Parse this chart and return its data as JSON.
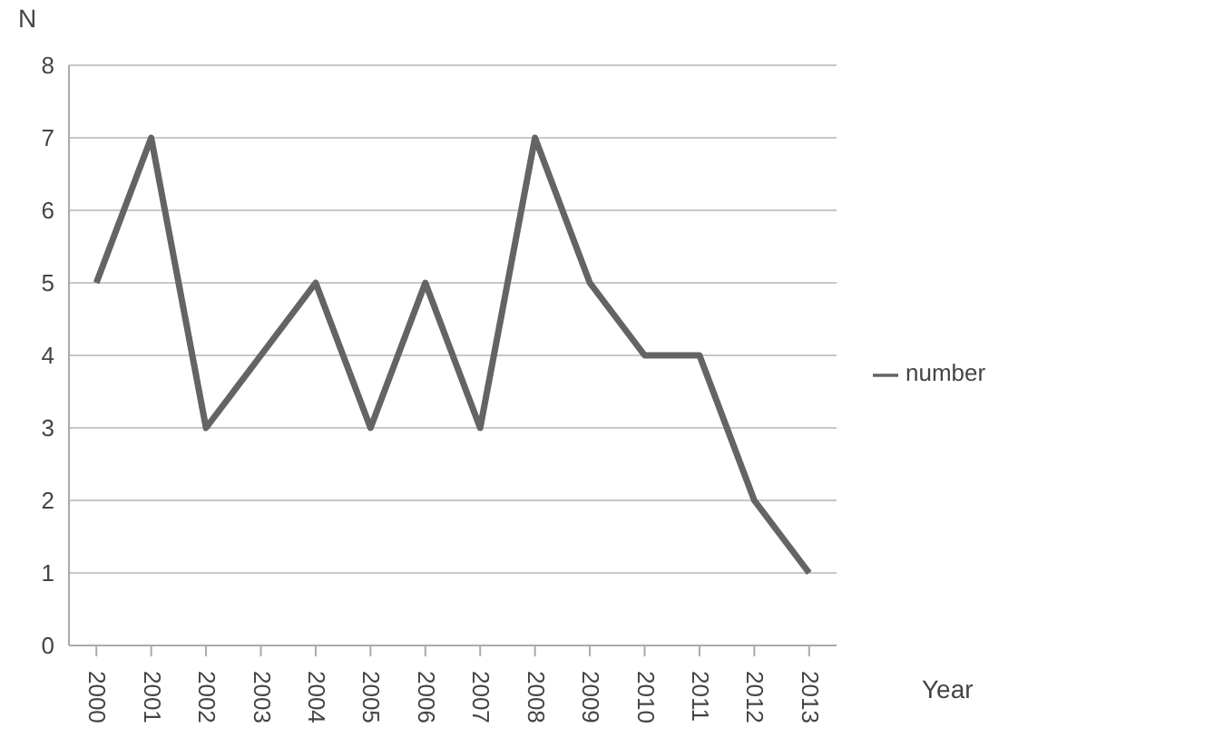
{
  "chart_data": {
    "type": "line",
    "xlabel": "Year",
    "ylabel": "N",
    "categories": [
      "2000",
      "2001",
      "2002",
      "2003",
      "2004",
      "2005",
      "2006",
      "2007",
      "2008",
      "2009",
      "2010",
      "2011",
      "2012",
      "2013"
    ],
    "series": [
      {
        "name": "number",
        "color": "#646464",
        "values": [
          5,
          7,
          3,
          4,
          5,
          3,
          5,
          3,
          7,
          5,
          4,
          4,
          2,
          1
        ]
      }
    ],
    "ylim": [
      0,
      8
    ],
    "yticks": [
      0,
      1,
      2,
      3,
      4,
      5,
      6,
      7,
      8
    ],
    "grid": "y",
    "legend": "right",
    "marker": "none",
    "line_style": "solid"
  }
}
